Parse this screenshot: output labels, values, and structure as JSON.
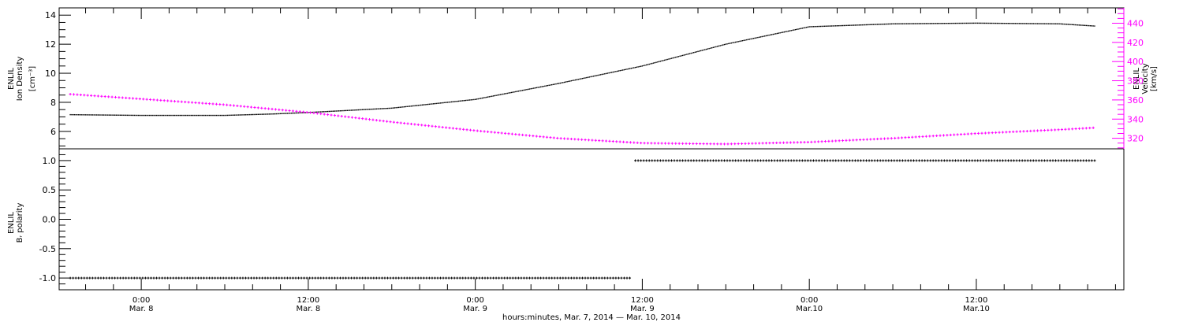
{
  "chart_data": [
    {
      "type": "line",
      "panel": "top",
      "x_units": "hours since 2014-03-07 00:00",
      "xlim": [
        18.1,
        94.6
      ],
      "ylim_left": [
        4.8,
        14.5
      ],
      "ylim_right": [
        309,
        456
      ],
      "left_ylabel": [
        "ENLIL",
        "Ion Density",
        "[cm⁻³]"
      ],
      "right_ylabel": [
        "ENLIL",
        "Velocity",
        "[km/s]"
      ],
      "left_ticks": [
        "6",
        "8",
        "10",
        "12",
        "14"
      ],
      "right_ticks": [
        "320",
        "340",
        "360",
        "380",
        "400",
        "420",
        "440"
      ],
      "series": [
        {
          "name": "Ion Density",
          "axis": "left",
          "color": "#000000",
          "x": [
            18.9,
            24,
            30,
            33.5,
            36,
            42,
            48,
            54,
            60,
            66,
            69,
            72,
            78,
            84,
            90,
            92.5
          ],
          "y": [
            7.15,
            7.1,
            7.1,
            7.2,
            7.3,
            7.6,
            8.2,
            9.3,
            10.5,
            12.0,
            12.6,
            13.2,
            13.4,
            13.45,
            13.4,
            13.25
          ]
        },
        {
          "name": "Velocity",
          "axis": "right",
          "color": "#ff00ff",
          "x": [
            18.9,
            24,
            30,
            36,
            42,
            48,
            54,
            60,
            66,
            72,
            78,
            84,
            90,
            92.5
          ],
          "y": [
            366,
            361,
            355,
            347,
            337,
            328,
            320,
            315,
            314,
            316,
            320,
            325,
            329,
            331
          ]
        }
      ]
    },
    {
      "type": "scatter",
      "panel": "bottom",
      "xlim": [
        18.1,
        94.6
      ],
      "ylim": [
        -1.2,
        1.2
      ],
      "ylabel": [
        "ENLIL",
        "Bᵣ polarity"
      ],
      "ticks": [
        "-1.0",
        "-0.5",
        "0.0",
        "0.5",
        "1.0"
      ],
      "series": [
        {
          "name": "Br polarity",
          "color": "#000000",
          "segments": [
            {
              "x_start": 18.9,
              "x_end": 59.2,
              "y": -1.0
            },
            {
              "x_start": 59.5,
              "x_end": 92.5,
              "y": 1.0
            }
          ]
        }
      ]
    }
  ],
  "x_axis": {
    "ticks": [
      {
        "hour": 24,
        "time": "0:00",
        "date": "Mar. 8"
      },
      {
        "hour": 36,
        "time": "12:00",
        "date": "Mar. 8"
      },
      {
        "hour": 48,
        "time": "0:00",
        "date": "Mar. 9"
      },
      {
        "hour": 60,
        "time": "12:00",
        "date": "Mar. 9"
      },
      {
        "hour": 72,
        "time": "0:00",
        "date": "Mar.10"
      },
      {
        "hour": 84,
        "time": "12:00",
        "date": "Mar.10"
      }
    ],
    "title": "hours:minutes, Mar.  7, 2014 — Mar. 10, 2014"
  }
}
